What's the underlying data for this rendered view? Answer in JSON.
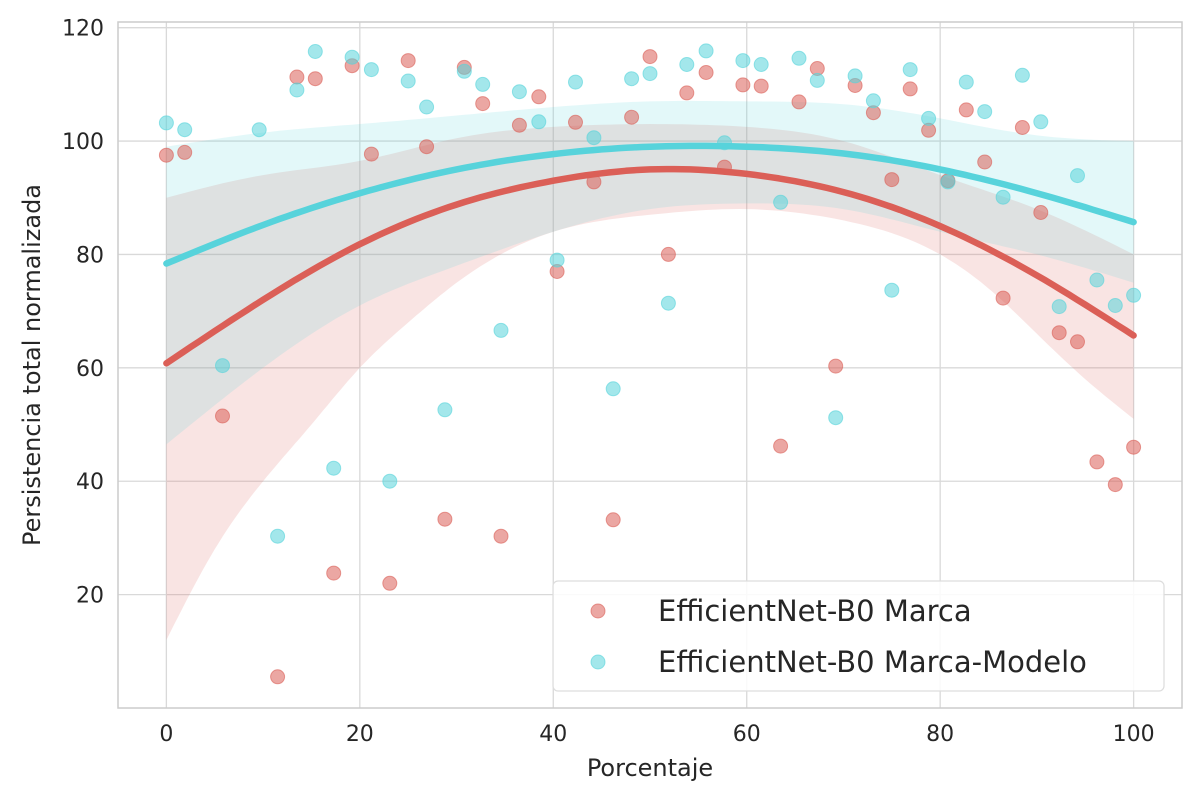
{
  "chart_data": {
    "type": "scatter",
    "xlabel": "Porcentaje",
    "ylabel": "Persistencia total normalizada",
    "xlim": [
      -5,
      105
    ],
    "ylim": [
      0,
      121
    ],
    "xticks": [
      0,
      20,
      40,
      60,
      80,
      100
    ],
    "yticks": [
      20,
      40,
      60,
      80,
      100,
      120
    ],
    "grid": true,
    "legend_position": "lower-right",
    "series": [
      {
        "name": "EfficientNet-B0 Marca",
        "color": "#db5f57",
        "points": [
          [
            0,
            97.5
          ],
          [
            1.9,
            98
          ],
          [
            5.8,
            51.5
          ],
          [
            11.5,
            5.5
          ],
          [
            13.5,
            111.3
          ],
          [
            15.4,
            111
          ],
          [
            17.3,
            23.8
          ],
          [
            19.2,
            113.3
          ],
          [
            21.2,
            97.7
          ],
          [
            23.1,
            22
          ],
          [
            25,
            114.2
          ],
          [
            26.9,
            99
          ],
          [
            28.8,
            33.3
          ],
          [
            30.8,
            113
          ],
          [
            32.7,
            106.6
          ],
          [
            34.6,
            30.3
          ],
          [
            36.5,
            102.8
          ],
          [
            38.5,
            107.8
          ],
          [
            40.4,
            77
          ],
          [
            42.3,
            103.3
          ],
          [
            44.2,
            92.8
          ],
          [
            46.2,
            33.2
          ],
          [
            48.1,
            104.2
          ],
          [
            50,
            114.9
          ],
          [
            51.9,
            80
          ],
          [
            53.8,
            108.5
          ],
          [
            55.8,
            112.1
          ],
          [
            57.7,
            95.4
          ],
          [
            59.6,
            109.9
          ],
          [
            61.5,
            109.7
          ],
          [
            63.5,
            46.2
          ],
          [
            65.4,
            106.9
          ],
          [
            67.3,
            112.8
          ],
          [
            69.2,
            60.3
          ],
          [
            71.2,
            109.8
          ],
          [
            73.1,
            105
          ],
          [
            75,
            93.2
          ],
          [
            76.9,
            109.2
          ],
          [
            78.8,
            101.9
          ],
          [
            80.8,
            93
          ],
          [
            82.7,
            105.5
          ],
          [
            84.6,
            96.3
          ],
          [
            86.5,
            72.3
          ],
          [
            88.5,
            102.4
          ],
          [
            90.4,
            87.4
          ],
          [
            92.3,
            66.2
          ],
          [
            94.2,
            64.6
          ],
          [
            96.2,
            43.4
          ],
          [
            98.1,
            39.4
          ],
          [
            100,
            46
          ]
        ],
        "fit": {
          "x": [
            0,
            10,
            20,
            30,
            40,
            50,
            60,
            70,
            80,
            90,
            100
          ],
          "y": [
            60.8,
            72,
            81.8,
            88.8,
            93,
            95,
            94.2,
            91,
            85,
            76.3,
            65.7
          ]
        },
        "ci_lower": {
          "x": [
            0,
            5,
            10,
            15,
            20,
            25,
            30,
            40,
            50,
            60,
            70,
            80,
            85,
            90,
            95,
            100
          ],
          "y": [
            12,
            28,
            40,
            50,
            60,
            68,
            75,
            84,
            87,
            88,
            86,
            80,
            74,
            66,
            58,
            51
          ]
        },
        "ci_upper": {
          "x": [
            0,
            10,
            20,
            30,
            40,
            50,
            60,
            70,
            80,
            90,
            100
          ],
          "y": [
            90,
            94,
            96.5,
            100.5,
            102.5,
            103,
            102.5,
            100,
            94,
            88,
            80
          ]
        }
      },
      {
        "name": "EfficientNet-B0 Marca-Modelo",
        "color": "#57d3db",
        "points": [
          [
            0,
            103.2
          ],
          [
            1.9,
            102
          ],
          [
            5.8,
            60.4
          ],
          [
            9.6,
            102
          ],
          [
            11.5,
            30.3
          ],
          [
            13.5,
            109
          ],
          [
            15.4,
            115.8
          ],
          [
            17.3,
            42.3
          ],
          [
            19.2,
            114.8
          ],
          [
            21.2,
            112.6
          ],
          [
            23.1,
            40
          ],
          [
            25,
            110.6
          ],
          [
            26.9,
            106
          ],
          [
            28.8,
            52.6
          ],
          [
            30.8,
            112.3
          ],
          [
            32.7,
            110
          ],
          [
            34.6,
            66.6
          ],
          [
            36.5,
            108.7
          ],
          [
            38.5,
            103.4
          ],
          [
            40.4,
            79
          ],
          [
            42.3,
            110.4
          ],
          [
            44.2,
            100.6
          ],
          [
            46.2,
            56.3
          ],
          [
            48.1,
            111
          ],
          [
            50,
            111.9
          ],
          [
            51.9,
            71.4
          ],
          [
            53.8,
            113.5
          ],
          [
            55.8,
            115.9
          ],
          [
            57.7,
            99.7
          ],
          [
            59.6,
            114.2
          ],
          [
            61.5,
            113.5
          ],
          [
            63.5,
            89.2
          ],
          [
            65.4,
            114.6
          ],
          [
            67.3,
            110.7
          ],
          [
            69.2,
            51.2
          ],
          [
            71.2,
            111.5
          ],
          [
            73.1,
            107.1
          ],
          [
            75,
            73.7
          ],
          [
            76.9,
            112.6
          ],
          [
            78.8,
            104
          ],
          [
            80.8,
            92.8
          ],
          [
            82.7,
            110.4
          ],
          [
            84.6,
            105.2
          ],
          [
            86.5,
            90.1
          ],
          [
            88.5,
            111.6
          ],
          [
            90.4,
            103.4
          ],
          [
            92.3,
            70.8
          ],
          [
            94.2,
            93.9
          ],
          [
            96.2,
            75.5
          ],
          [
            98.1,
            71
          ],
          [
            100,
            72.8
          ]
        ],
        "fit": {
          "x": [
            0,
            10,
            20,
            30,
            40,
            50,
            60,
            70,
            80,
            90,
            100
          ],
          "y": [
            78.4,
            85.2,
            90.8,
            95,
            97.7,
            99,
            99,
            97.8,
            95,
            90.8,
            85.7
          ]
        },
        "ci_lower": {
          "x": [
            0,
            10,
            20,
            30,
            40,
            50,
            60,
            70,
            80,
            90,
            100
          ],
          "y": [
            46.5,
            60,
            71,
            78,
            84,
            88,
            89,
            88,
            84,
            80,
            75
          ]
        },
        "ci_upper": {
          "x": [
            0,
            10,
            20,
            30,
            40,
            50,
            60,
            70,
            80,
            90,
            100
          ],
          "y": [
            99,
            101.5,
            103,
            104.5,
            106,
            107,
            107,
            106.5,
            104,
            101,
            100
          ]
        }
      }
    ]
  }
}
